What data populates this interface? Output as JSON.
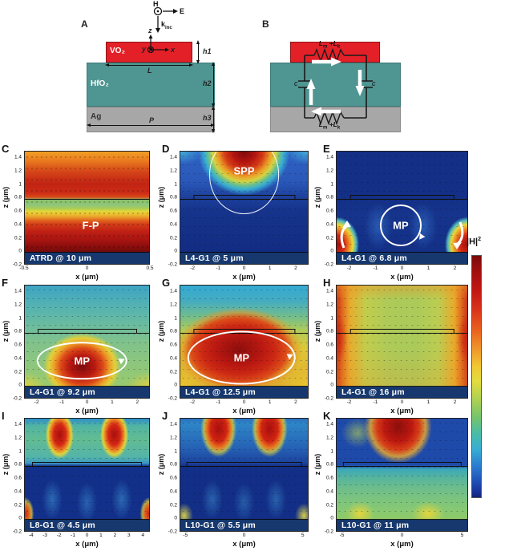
{
  "schematic_a": {
    "panel_label": "A",
    "incidence": {
      "h": "H",
      "e": "E",
      "k": "k",
      "k_sub": "inc"
    },
    "coord": {
      "x": "x",
      "y": "y",
      "z": "z"
    },
    "layers": {
      "vo2": "VO₂",
      "hfo2": "HfO₂",
      "ag": "Ag"
    },
    "dims": {
      "h1": "h1",
      "h2": "h2",
      "h3": "h3",
      "l": "L",
      "p": "P"
    },
    "colors": {
      "vo2": "#e32028",
      "hfo2": "#4f9591",
      "ag": "#a7a7a7"
    }
  },
  "schematic_b": {
    "panel_label": "B",
    "inductor": {
      "base1": "L",
      "sub1": "m",
      "plus": "+",
      "base2": "L",
      "sub2": "k"
    },
    "cap": "c"
  },
  "axes": {
    "xlabel": "x (μm)",
    "ylabel": "z (μm)",
    "y_ticks": [
      "1.4",
      "1.2",
      "1",
      "0.8",
      "0.6",
      "0.4",
      "0.2",
      "0",
      "-0.2"
    ]
  },
  "colorbar": {
    "base": "|H|",
    "sup": "2"
  },
  "panels": [
    {
      "letter": "C",
      "caption": "ATRD @ 10 μm",
      "annotation": "F-P",
      "x_ticks": [
        "-0.5",
        "0",
        "0.5"
      ],
      "x_range": [
        -0.5,
        0.5
      ]
    },
    {
      "letter": "D",
      "caption": "L4-G1 @ 5 μm",
      "annotation": "SPP",
      "x_ticks": [
        "-2",
        "-1",
        "0",
        "1",
        "2"
      ],
      "x_range": [
        -2.5,
        2.5
      ]
    },
    {
      "letter": "E",
      "caption": "L4-G1 @ 6.8 μm",
      "annotation": "MP",
      "x_ticks": [
        "-2",
        "-1",
        "0",
        "1",
        "2"
      ],
      "x_range": [
        -2.5,
        2.5
      ]
    },
    {
      "letter": "F",
      "caption": "L4-G1 @ 9.2 μm",
      "annotation": "MP",
      "x_ticks": [
        "-2",
        "-1",
        "0",
        "1",
        "2"
      ],
      "x_range": [
        -2.5,
        2.5
      ]
    },
    {
      "letter": "G",
      "caption": "L4-G1 @ 12.5 μm",
      "annotation": "MP",
      "x_ticks": [
        "-2",
        "-1",
        "0",
        "1",
        "2"
      ],
      "x_range": [
        -2.5,
        2.5
      ]
    },
    {
      "letter": "H",
      "caption": "L4-G1 @ 16 μm",
      "annotation": "",
      "x_ticks": [
        "-2",
        "-1",
        "0",
        "1",
        "2"
      ],
      "x_range": [
        -2.5,
        2.5
      ]
    },
    {
      "letter": "I",
      "caption": "L8-G1 @ 4.5 μm",
      "annotation": "",
      "x_ticks": [
        "-4",
        "-3",
        "-2",
        "-1",
        "0",
        "1",
        "2",
        "3",
        "4"
      ],
      "x_range": [
        -4.5,
        4.5
      ]
    },
    {
      "letter": "J",
      "caption": "L10-G1 @ 5.5 μm",
      "annotation": "",
      "x_ticks": [
        "-5",
        "0",
        "5"
      ],
      "x_range": [
        -5.5,
        5.5
      ]
    },
    {
      "letter": "K",
      "caption": "L10-G1 @ 11 μm",
      "annotation": "",
      "x_ticks": [
        "-5",
        "0",
        "5"
      ],
      "x_range": [
        -5.5,
        5.5
      ]
    }
  ]
}
